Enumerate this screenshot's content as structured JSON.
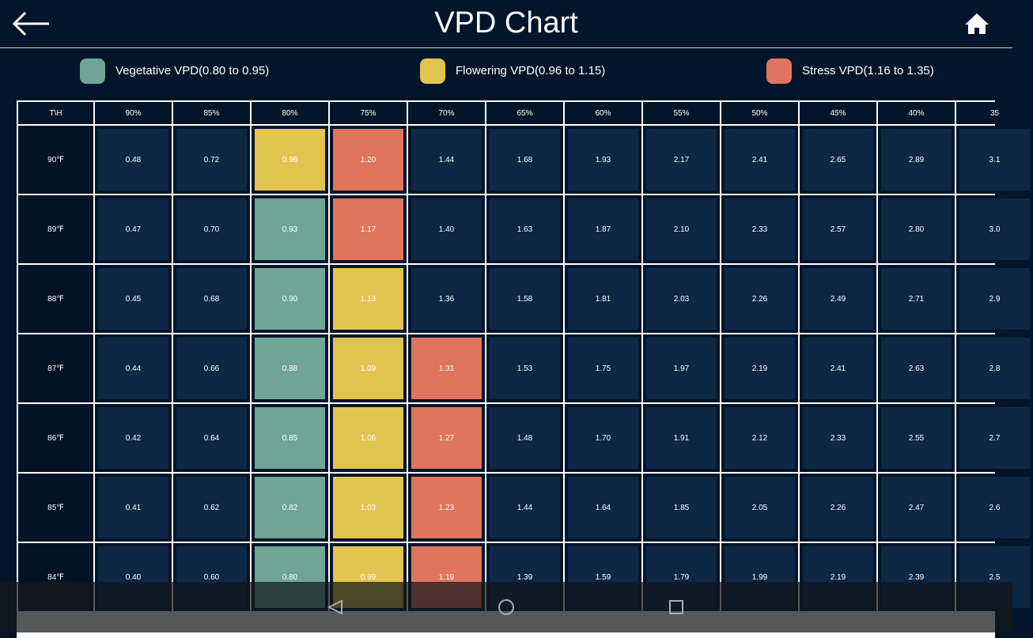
{
  "header": {
    "title": "VPD Chart"
  },
  "legend": [
    {
      "label": "Vegetative VPD(0.80 to 0.95)",
      "color": "#6fa597"
    },
    {
      "label": "Flowering VPD(0.96 to 1.15)",
      "color": "#e3c350"
    },
    {
      "label": "Stress VPD(1.16 to 1.35)",
      "color": "#de755c"
    }
  ],
  "table": {
    "header": [
      "T\\H",
      "90%",
      "85%",
      "80%",
      "75%",
      "70%",
      "65%",
      "60%",
      "55%",
      "50%",
      "45%",
      "40%",
      "35"
    ],
    "rows": [
      {
        "label": "90℉",
        "cells": [
          "0.48",
          "0.72",
          "0.96",
          "1.20",
          "1.44",
          "1.68",
          "1.93",
          "2.17",
          "2.41",
          "2.65",
          "2.89",
          "3.1"
        ],
        "colors": [
          "#0d2745",
          "#0d2745",
          "#e3c350",
          "#de755c",
          "#0d2745",
          "#0d2745",
          "#0d2745",
          "#0d2745",
          "#0d2745",
          "#0d2745",
          "#0d2745",
          "#0d2745"
        ]
      },
      {
        "label": "89℉",
        "cells": [
          "0.47",
          "0.70",
          "0.93",
          "1.17",
          "1.40",
          "1.63",
          "1.87",
          "2.10",
          "2.33",
          "2.57",
          "2.80",
          "3.0"
        ],
        "colors": [
          "#0d2745",
          "#0d2745",
          "#6fa597",
          "#de755c",
          "#0d2745",
          "#0d2745",
          "#0d2745",
          "#0d2745",
          "#0d2745",
          "#0d2745",
          "#0d2745",
          "#0d2745"
        ]
      },
      {
        "label": "88℉",
        "cells": [
          "0.45",
          "0.68",
          "0.90",
          "1.13",
          "1.36",
          "1.58",
          "1.81",
          "2.03",
          "2.26",
          "2.49",
          "2.71",
          "2.9"
        ],
        "colors": [
          "#0d2745",
          "#0d2745",
          "#6fa597",
          "#e3c350",
          "#0d2745",
          "#0d2745",
          "#0d2745",
          "#0d2745",
          "#0d2745",
          "#0d2745",
          "#0d2745",
          "#0d2745"
        ]
      },
      {
        "label": "87℉",
        "cells": [
          "0.44",
          "0.66",
          "0.88",
          "1.09",
          "1.31",
          "1.53",
          "1.75",
          "1.97",
          "2.19",
          "2.41",
          "2.63",
          "2.8"
        ],
        "colors": [
          "#0d2745",
          "#0d2745",
          "#6fa597",
          "#e3c350",
          "#de755c",
          "#0d2745",
          "#0d2745",
          "#0d2745",
          "#0d2745",
          "#0d2745",
          "#0d2745",
          "#0d2745"
        ]
      },
      {
        "label": "86℉",
        "cells": [
          "0.42",
          "0.64",
          "0.85",
          "1.06",
          "1.27",
          "1.48",
          "1.70",
          "1.91",
          "2.12",
          "2.33",
          "2.55",
          "2.7"
        ],
        "colors": [
          "#0d2745",
          "#0d2745",
          "#6fa597",
          "#e3c350",
          "#de755c",
          "#0d2745",
          "#0d2745",
          "#0d2745",
          "#0d2745",
          "#0d2745",
          "#0d2745",
          "#0d2745"
        ]
      },
      {
        "label": "85℉",
        "cells": [
          "0.41",
          "0.62",
          "0.82",
          "1.03",
          "1.23",
          "1.44",
          "1.64",
          "1.85",
          "2.05",
          "2.26",
          "2.47",
          "2.6"
        ],
        "colors": [
          "#0d2745",
          "#0d2745",
          "#6fa597",
          "#e3c350",
          "#de755c",
          "#0d2745",
          "#0d2745",
          "#0d2745",
          "#0d2745",
          "#0d2745",
          "#0d2745",
          "#0d2745"
        ]
      },
      {
        "label": "84℉",
        "cells": [
          "0.40",
          "0.60",
          "0.80",
          "0.99",
          "1.19",
          "1.39",
          "1.59",
          "1.79",
          "1.99",
          "2.19",
          "2.39",
          "2.5"
        ],
        "colors": [
          "#0d2745",
          "#0d2745",
          "#6fa597",
          "#e3c350",
          "#de755c",
          "#0d2745",
          "#0d2745",
          "#0d2745",
          "#0d2745",
          "#0d2745",
          "#0d2745",
          "#0d2745"
        ]
      }
    ]
  }
}
